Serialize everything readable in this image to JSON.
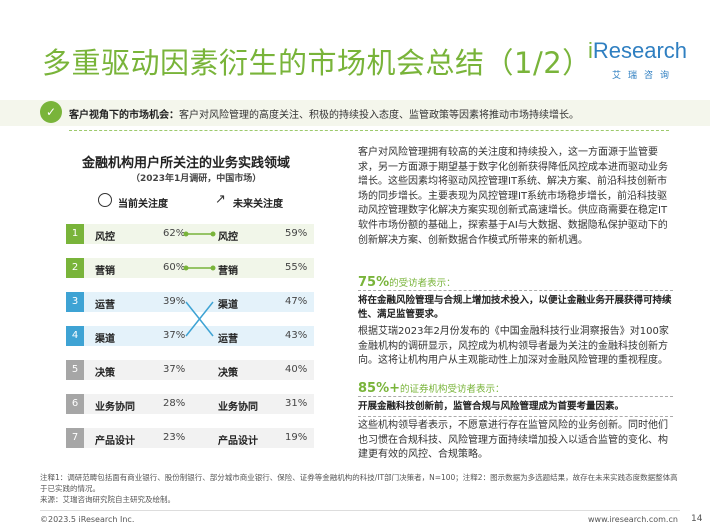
{
  "title": "多重驱动因素衍生的市场机会总结（1/2）",
  "logo": {
    "prefix": "i",
    "name": "Research",
    "sub": "艾瑞咨询"
  },
  "summary": {
    "label": "客户视角下的市场机会：",
    "text": "客户对风险管理的高度关注、积极的持续投入态度、监管政策等因素将推动市场持续增长。"
  },
  "chart": {
    "title": "金融机构用户所关注的业务实践领域",
    "subtitle": "（2023年1月调研，中国市场）",
    "current_header": "当前关注度",
    "future_header": "未来关注度",
    "rows": [
      {
        "rank": "1",
        "current_label": "风控",
        "current_pct": "62%",
        "future_label": "风控",
        "future_pct": "59%",
        "color": "#79b43a"
      },
      {
        "rank": "2",
        "current_label": "营销",
        "current_pct": "60%",
        "future_label": "营销",
        "future_pct": "55%",
        "color": "#79b43a"
      },
      {
        "rank": "3",
        "current_label": "运营",
        "current_pct": "39%",
        "future_label": "渠道",
        "future_pct": "47%",
        "color": "#3ea3d4"
      },
      {
        "rank": "4",
        "current_label": "渠道",
        "current_pct": "37%",
        "future_label": "运营",
        "future_pct": "43%",
        "color": "#3ea3d4"
      },
      {
        "rank": "5",
        "current_label": "决策",
        "current_pct": "37%",
        "future_label": "决策",
        "future_pct": "40%",
        "color": "#a6a6a6"
      },
      {
        "rank": "6",
        "current_label": "业务协同",
        "current_pct": "28%",
        "future_label": "业务协同",
        "future_pct": "31%",
        "color": "#a6a6a6"
      },
      {
        "rank": "7",
        "current_label": "产品设计",
        "current_pct": "23%",
        "future_label": "产品设计",
        "future_pct": "19%",
        "color": "#a6a6a6"
      }
    ]
  },
  "right": {
    "para1": "客户对风险管理拥有较高的关注度和持续投入，这一方面源于监管要求，另一方面源于期望基于数字化创新获得降低风控成本进而驱动业务增长。这些因素均将驱动风控管理IT系统、解决方案、前沿科技创新市场的同步增长。主要表现为风控管理IT系统市场稳步增长，前沿科技驱动风控管理数字化解决方案实现创新式高速增长。供应商需要在稳定IT软件市场份额的基础上，探索基于AI与大数据、数据隐私保护驱动下的创新解决方案、创新数据合作模式所带来的新机遇。",
    "stat1_value": "75%",
    "stat1_label": "的受访者表示：",
    "stat1_text": "将在金融风险管理与合规上增加技术投入，以便让金融业务开展获得可持续性、满足监管要求。",
    "para2": "根据艾瑞2023年2月份发布的《中国金融科技行业洞察报告》对100家金融机构的调研显示，风控成为机构领导者最为关注的金融科技创新方向。这将让机构用户从主观能动性上加深对金融风险管理的重视程度。",
    "stat2_value": "85%+",
    "stat2_label": "的证券机构受访者表示：",
    "stat2_text": "开展金融科技创新前，监管合规与风险管理成为首要考量因素。",
    "para3": "这些机构领导者表示，不愿意进行存在监管风险的业务创新。同时他们也习惯在合规科技、风险管理方面持续增加投入以适合监管的变化、构建更有效的风控、合规策略。"
  },
  "notes": {
    "line1": "注释1：调研范畴包括面有商业银行、股份制银行、部分城市商业银行、保险、证券等金融机构的科技/IT部门决策者，N=100；注释2：图示数据为多选题结果，故存在未来实践态度数据整体高于已实践的情况。",
    "line2": "来源：艾瑞咨询研究院自主研究及绘制。"
  },
  "footer": {
    "copyright": "©2023.5 iResearch Inc.",
    "url": "www.iresearch.com.cn",
    "page": "14"
  }
}
